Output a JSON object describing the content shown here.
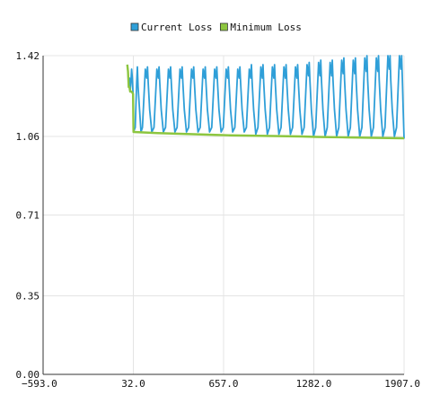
{
  "chart_data": {
    "type": "line",
    "title": "",
    "xlabel": "",
    "ylabel": "",
    "xlim": [
      -593.0,
      1907.0
    ],
    "ylim": [
      0.0,
      1.42
    ],
    "x_ticks": [
      "−593.0",
      "32.0",
      "657.0",
      "1282.0",
      "1907.0"
    ],
    "x_tick_values": [
      -593.0,
      32.0,
      657.0,
      1282.0,
      1907.0
    ],
    "y_ticks": [
      "0.00",
      "0.35",
      "0.71",
      "1.06",
      "1.42"
    ],
    "y_tick_values": [
      0.0,
      0.35,
      0.71,
      1.06,
      1.42
    ],
    "grid": true,
    "legend_position": "top-center",
    "series": [
      {
        "name": "Current Loss",
        "color": "#2f9fd8",
        "x": [
          -10,
          -5,
          0,
          5,
          10,
          15,
          20,
          25,
          30,
          33,
          45,
          55,
          60,
          65,
          75,
          85,
          95,
          115,
          125,
          130,
          135,
          145,
          160,
          175,
          195,
          205,
          210,
          215,
          225,
          240,
          255,
          275,
          285,
          290,
          295,
          305,
          320,
          335,
          355,
          365,
          370,
          375,
          385,
          400,
          415,
          435,
          445,
          450,
          455,
          465,
          480,
          495,
          515,
          525,
          530,
          535,
          545,
          560,
          575,
          595,
          605,
          610,
          615,
          625,
          640,
          655,
          675,
          685,
          690,
          695,
          705,
          720,
          735,
          755,
          765,
          770,
          775,
          785,
          800,
          815,
          835,
          845,
          850,
          855,
          865,
          880,
          895,
          915,
          925,
          930,
          935,
          945,
          960,
          975,
          995,
          1005,
          1010,
          1015,
          1025,
          1040,
          1055,
          1075,
          1085,
          1090,
          1095,
          1105,
          1120,
          1135,
          1155,
          1165,
          1170,
          1175,
          1185,
          1200,
          1215,
          1235,
          1245,
          1250,
          1255,
          1265,
          1280,
          1295,
          1315,
          1325,
          1330,
          1335,
          1345,
          1360,
          1375,
          1395,
          1405,
          1410,
          1415,
          1425,
          1440,
          1455,
          1475,
          1485,
          1490,
          1495,
          1505,
          1520,
          1535,
          1555,
          1565,
          1570,
          1575,
          1585,
          1600,
          1615,
          1635,
          1645,
          1650,
          1655,
          1665,
          1680,
          1695,
          1715,
          1725,
          1730,
          1735,
          1745,
          1760,
          1775,
          1795,
          1805,
          1810,
          1815,
          1825,
          1840,
          1855,
          1875,
          1885,
          1890,
          1895,
          1900,
          1907
        ],
        "y": [
          1.38,
          1.35,
          1.28,
          1.32,
          1.26,
          1.3,
          1.36,
          1.32,
          1.25,
          1.08,
          1.1,
          1.3,
          1.37,
          1.28,
          1.18,
          1.08,
          1.1,
          1.36,
          1.32,
          1.37,
          1.3,
          1.18,
          1.08,
          1.1,
          1.36,
          1.32,
          1.37,
          1.3,
          1.18,
          1.08,
          1.1,
          1.36,
          1.32,
          1.37,
          1.3,
          1.18,
          1.08,
          1.1,
          1.36,
          1.32,
          1.37,
          1.3,
          1.18,
          1.08,
          1.1,
          1.36,
          1.32,
          1.37,
          1.3,
          1.18,
          1.08,
          1.1,
          1.36,
          1.32,
          1.37,
          1.3,
          1.18,
          1.08,
          1.1,
          1.36,
          1.32,
          1.37,
          1.3,
          1.18,
          1.08,
          1.1,
          1.36,
          1.32,
          1.37,
          1.3,
          1.18,
          1.08,
          1.1,
          1.36,
          1.32,
          1.37,
          1.3,
          1.18,
          1.08,
          1.1,
          1.36,
          1.32,
          1.38,
          1.3,
          1.18,
          1.07,
          1.1,
          1.37,
          1.32,
          1.38,
          1.3,
          1.18,
          1.07,
          1.1,
          1.37,
          1.32,
          1.38,
          1.3,
          1.18,
          1.07,
          1.1,
          1.37,
          1.32,
          1.38,
          1.3,
          1.18,
          1.07,
          1.1,
          1.37,
          1.32,
          1.38,
          1.3,
          1.18,
          1.07,
          1.1,
          1.38,
          1.33,
          1.39,
          1.31,
          1.18,
          1.06,
          1.1,
          1.39,
          1.33,
          1.4,
          1.31,
          1.18,
          1.06,
          1.1,
          1.39,
          1.33,
          1.4,
          1.31,
          1.18,
          1.06,
          1.1,
          1.4,
          1.34,
          1.41,
          1.31,
          1.18,
          1.06,
          1.1,
          1.4,
          1.34,
          1.41,
          1.31,
          1.18,
          1.06,
          1.1,
          1.41,
          1.35,
          1.42,
          1.31,
          1.18,
          1.06,
          1.1,
          1.41,
          1.35,
          1.42,
          1.31,
          1.18,
          1.06,
          1.1,
          1.42,
          1.36,
          1.42,
          1.31,
          1.18,
          1.06,
          1.1,
          1.42,
          1.36,
          1.42,
          1.32,
          1.2,
          1.05
        ]
      },
      {
        "name": "Minimum Loss",
        "color": "#8dc63f",
        "x": [
          -10,
          -5,
          0,
          5,
          10,
          20,
          30,
          33,
          100,
          200,
          300,
          400,
          500,
          600,
          700,
          800,
          900,
          1000,
          1100,
          1200,
          1300,
          1400,
          1500,
          1600,
          1700,
          1800,
          1907
        ],
        "y": [
          1.38,
          1.35,
          1.28,
          1.28,
          1.26,
          1.26,
          1.25,
          1.08,
          1.078,
          1.075,
          1.073,
          1.071,
          1.069,
          1.067,
          1.065,
          1.064,
          1.063,
          1.062,
          1.061,
          1.06,
          1.058,
          1.057,
          1.056,
          1.055,
          1.054,
          1.053,
          1.052
        ]
      }
    ]
  }
}
